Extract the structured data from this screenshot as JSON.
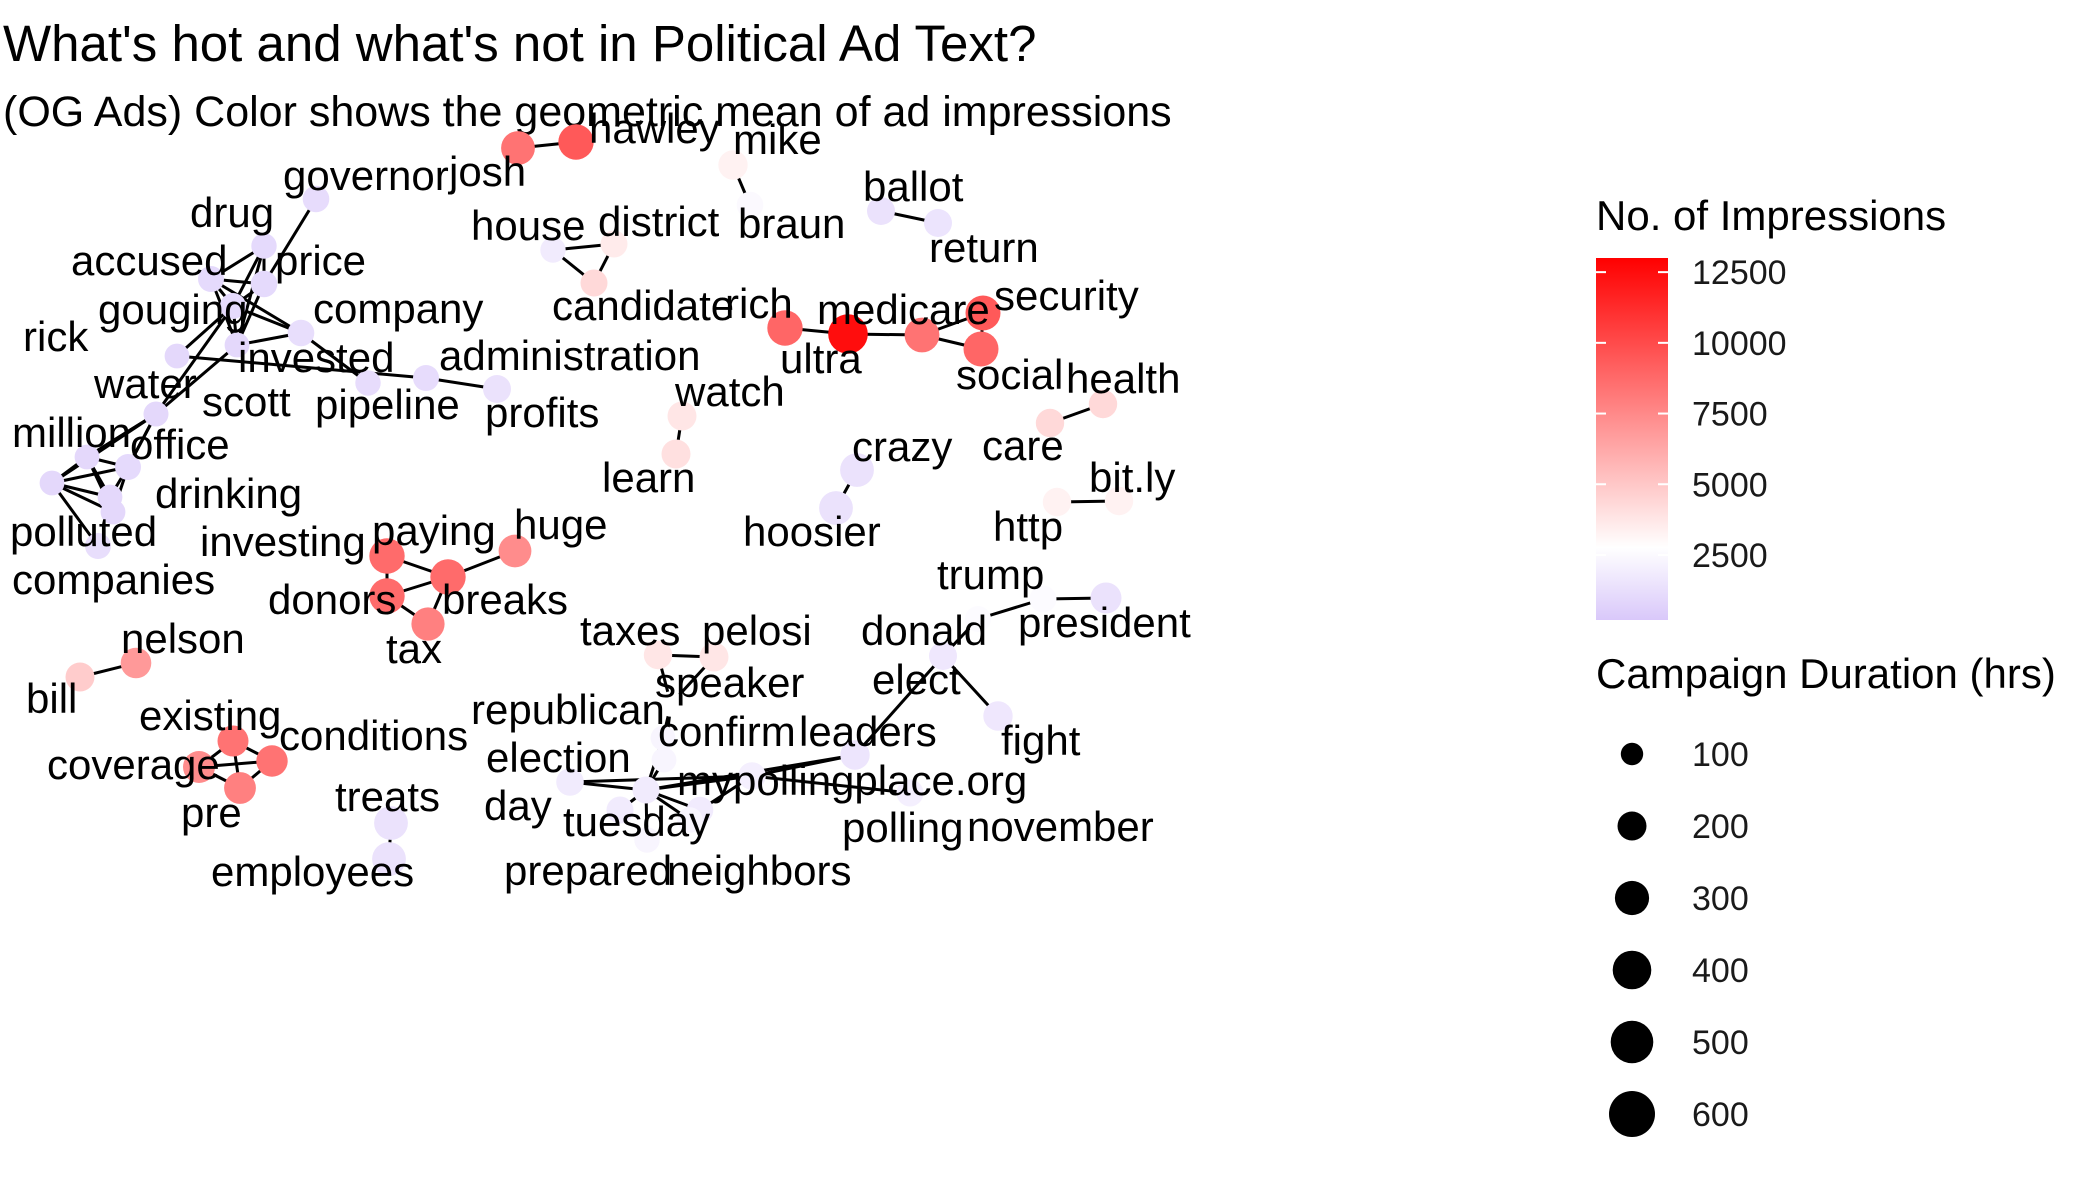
{
  "title": "What's hot and what's not in Political Ad Text?",
  "subtitle": "(OG Ads) Color shows the geometric mean of ad impressions",
  "colors": {
    "low": "#d9c8fa",
    "mid": "#ffffff",
    "high": "#ff0000",
    "edge": "#000000"
  },
  "chart_data": {
    "type": "network",
    "color_legend": {
      "title": "No. of Impressions",
      "ticks": [
        2500,
        5000,
        7500,
        10000,
        12500
      ],
      "range": [
        200,
        13000
      ]
    },
    "size_legend": {
      "title": "Campaign Duration (hrs)",
      "values": [
        100,
        200,
        300,
        400,
        500,
        600
      ]
    },
    "nodes": [
      {
        "word": "josh",
        "impressions": 8500,
        "duration": 300
      },
      {
        "word": "hawley",
        "impressions": 9500,
        "duration": 350
      },
      {
        "word": "mike",
        "impressions": 3500,
        "duration": 180
      },
      {
        "word": "braun",
        "impressions": 2700,
        "duration": 120
      },
      {
        "word": "ballot",
        "impressions": 1500,
        "duration": 150
      },
      {
        "word": "return",
        "impressions": 1600,
        "duration": 150
      },
      {
        "word": "governor",
        "impressions": 1200,
        "duration": 120
      },
      {
        "word": "drug",
        "impressions": 1100,
        "duration": 100
      },
      {
        "word": "price",
        "impressions": 1100,
        "duration": 120
      },
      {
        "word": "accused",
        "impressions": 1100,
        "duration": 110
      },
      {
        "word": "gouging",
        "impressions": 1100,
        "duration": 110
      },
      {
        "word": "company",
        "impressions": 1300,
        "duration": 120
      },
      {
        "word": "rick",
        "impressions": 1000,
        "duration": 90
      },
      {
        "word": "invested",
        "impressions": 1000,
        "duration": 90
      },
      {
        "word": "pipeline",
        "impressions": 1200,
        "duration": 100
      },
      {
        "word": "administration",
        "impressions": 1200,
        "duration": 110
      },
      {
        "word": "profits",
        "impressions": 1500,
        "duration": 150
      },
      {
        "word": "water",
        "impressions": 1000,
        "duration": 90
      },
      {
        "word": "scott",
        "impressions": 1000,
        "duration": 90
      },
      {
        "word": "million",
        "impressions": 1000,
        "duration": 90
      },
      {
        "word": "office",
        "impressions": 1100,
        "duration": 110
      },
      {
        "word": "drinking",
        "impressions": 1000,
        "duration": 90
      },
      {
        "word": "polluted",
        "impressions": 1000,
        "duration": 90
      },
      {
        "word": "investing",
        "impressions": 1000,
        "duration": 90
      },
      {
        "word": "companies",
        "impressions": 1300,
        "duration": 110
      },
      {
        "word": "house",
        "impressions": 2000,
        "duration": 100
      },
      {
        "word": "district",
        "impressions": 3800,
        "duration": 130
      },
      {
        "word": "candidate",
        "impressions": 4500,
        "duration": 130
      },
      {
        "word": "rich",
        "impressions": 9000,
        "duration": 350
      },
      {
        "word": "ultra",
        "impressions": 12500,
        "duration": 500
      },
      {
        "word": "medicare",
        "impressions": 8500,
        "duration": 330
      },
      {
        "word": "security",
        "impressions": 9500,
        "duration": 340
      },
      {
        "word": "social",
        "impressions": 9000,
        "duration": 340
      },
      {
        "word": "health",
        "impressions": 4500,
        "duration": 160
      },
      {
        "word": "care",
        "impressions": 4500,
        "duration": 160
      },
      {
        "word": "watch",
        "impressions": 4000,
        "duration": 170
      },
      {
        "word": "learn",
        "impressions": 4200,
        "duration": 170
      },
      {
        "word": "crazy",
        "impressions": 1500,
        "duration": 300
      },
      {
        "word": "hoosier",
        "impressions": 1500,
        "duration": 300
      },
      {
        "word": "http",
        "impressions": 3500,
        "duration": 160
      },
      {
        "word": "bit.ly",
        "impressions": 3500,
        "duration": 160
      },
      {
        "word": "paying",
        "impressions": 8800,
        "duration": 350
      },
      {
        "word": "huge",
        "impressions": 7500,
        "duration": 270
      },
      {
        "word": "donors",
        "impressions": 8800,
        "duration": 350
      },
      {
        "word": "breaks",
        "impressions": 8800,
        "duration": 350
      },
      {
        "word": "tax",
        "impressions": 8000,
        "duration": 280
      },
      {
        "word": "trump",
        "impressions": 2800,
        "duration": 130
      },
      {
        "word": "president",
        "impressions": 1500,
        "duration": 220
      },
      {
        "word": "donald",
        "impressions": 2800,
        "duration": 110
      },
      {
        "word": "bill",
        "impressions": 5000,
        "duration": 170
      },
      {
        "word": "nelson",
        "impressions": 7000,
        "duration": 210
      },
      {
        "word": "existing",
        "impressions": 8500,
        "duration": 220
      },
      {
        "word": "conditions",
        "impressions": 8500,
        "duration": 230
      },
      {
        "word": "coverage",
        "impressions": 7500,
        "duration": 250
      },
      {
        "word": "pre",
        "impressions": 8000,
        "duration": 240
      },
      {
        "word": "taxes",
        "impressions": 4000,
        "duration": 160
      },
      {
        "word": "pelosi",
        "impressions": 4000,
        "duration": 170
      },
      {
        "word": "speaker",
        "impressions": 3000,
        "duration": 100
      },
      {
        "word": "republican",
        "impressions": 2500,
        "duration": 90
      },
      {
        "word": "confirm",
        "impressions": 2500,
        "duration": 90
      },
      {
        "word": "elect",
        "impressions": 1800,
        "duration": 150
      },
      {
        "word": "fight",
        "impressions": 1800,
        "duration": 180
      },
      {
        "word": "leaders",
        "impressions": 1700,
        "duration": 180
      },
      {
        "word": "election",
        "impressions": 2000,
        "duration": 140
      },
      {
        "word": "mypollingplace.org",
        "impressions": 2200,
        "duration": 140
      },
      {
        "word": "day",
        "impressions": 2000,
        "duration": 130
      },
      {
        "word": "tuesday",
        "impressions": 2000,
        "duration": 130
      },
      {
        "word": "polling",
        "impressions": 2000,
        "duration": 120
      },
      {
        "word": "november",
        "impressions": 2200,
        "duration": 130
      },
      {
        "word": "treats",
        "impressions": 1500,
        "duration": 300
      },
      {
        "word": "employees",
        "impressions": 1500,
        "duration": 300
      },
      {
        "word": "prepared",
        "impressions": 2500,
        "duration": 100
      },
      {
        "word": "neighbors",
        "impressions": 2500,
        "duration": 100
      }
    ],
    "edges": [
      [
        "josh",
        "hawley"
      ],
      [
        "mike",
        "braun"
      ],
      [
        "ballot",
        "return"
      ],
      [
        "governor",
        "price"
      ],
      [
        "drug",
        "price"
      ],
      [
        "drug",
        "accused"
      ],
      [
        "drug",
        "gouging"
      ],
      [
        "drug",
        "invested"
      ],
      [
        "price",
        "accused"
      ],
      [
        "price",
        "gouging"
      ],
      [
        "price",
        "invested"
      ],
      [
        "accused",
        "gouging"
      ],
      [
        "accused",
        "invested"
      ],
      [
        "accused",
        "company"
      ],
      [
        "gouging",
        "company"
      ],
      [
        "gouging",
        "invested"
      ],
      [
        "gouging",
        "rick"
      ],
      [
        "company",
        "pipeline"
      ],
      [
        "invested",
        "company"
      ],
      [
        "rick",
        "administration"
      ],
      [
        "administration",
        "profits"
      ],
      [
        "invested",
        "scott"
      ],
      [
        "gouging",
        "water"
      ],
      [
        "water",
        "scott"
      ],
      [
        "water",
        "million"
      ],
      [
        "water",
        "office"
      ],
      [
        "water",
        "polluted"
      ],
      [
        "scott",
        "million"
      ],
      [
        "scott",
        "office"
      ],
      [
        "million",
        "office"
      ],
      [
        "million",
        "drinking"
      ],
      [
        "million",
        "polluted"
      ],
      [
        "million",
        "investing"
      ],
      [
        "office",
        "drinking"
      ],
      [
        "office",
        "polluted"
      ],
      [
        "office",
        "investing"
      ],
      [
        "drinking",
        "polluted"
      ],
      [
        "polluted",
        "investing"
      ],
      [
        "polluted",
        "companies"
      ],
      [
        "house",
        "district"
      ],
      [
        "house",
        "candidate"
      ],
      [
        "district",
        "candidate"
      ],
      [
        "rich",
        "ultra"
      ],
      [
        "ultra",
        "medicare"
      ],
      [
        "medicare",
        "security"
      ],
      [
        "medicare",
        "social"
      ],
      [
        "security",
        "social"
      ],
      [
        "health",
        "care"
      ],
      [
        "watch",
        "learn"
      ],
      [
        "crazy",
        "hoosier"
      ],
      [
        "http",
        "bit.ly"
      ],
      [
        "paying",
        "donors"
      ],
      [
        "paying",
        "breaks"
      ],
      [
        "donors",
        "breaks"
      ],
      [
        "breaks",
        "huge"
      ],
      [
        "breaks",
        "tax"
      ],
      [
        "donors",
        "tax"
      ],
      [
        "trump",
        "president"
      ],
      [
        "trump",
        "donald"
      ],
      [
        "donald",
        "elect"
      ],
      [
        "elect",
        "fight"
      ],
      [
        "elect",
        "leaders"
      ],
      [
        "bill",
        "nelson"
      ],
      [
        "existing",
        "coverage"
      ],
      [
        "existing",
        "conditions"
      ],
      [
        "existing",
        "pre"
      ],
      [
        "coverage",
        "conditions"
      ],
      [
        "coverage",
        "pre"
      ],
      [
        "pre",
        "conditions"
      ],
      [
        "taxes",
        "pelosi"
      ],
      [
        "taxes",
        "speaker"
      ],
      [
        "pelosi",
        "speaker"
      ],
      [
        "speaker",
        "confirm"
      ],
      [
        "speaker",
        "republican"
      ],
      [
        "confirm",
        "tuesday"
      ],
      [
        "republican",
        "tuesday"
      ],
      [
        "election",
        "tuesday"
      ],
      [
        "day",
        "tuesday"
      ],
      [
        "tuesday",
        "mypollingplace.org"
      ],
      [
        "tuesday",
        "polling"
      ],
      [
        "tuesday",
        "prepared"
      ],
      [
        "tuesday",
        "neighbors"
      ],
      [
        "leaders",
        "mypollingplace.org"
      ],
      [
        "leaders",
        "tuesday"
      ],
      [
        "mypollingplace.org",
        "polling"
      ],
      [
        "mypollingplace.org",
        "november"
      ],
      [
        "election",
        "mypollingplace.org"
      ],
      [
        "treats",
        "employees"
      ]
    ]
  }
}
